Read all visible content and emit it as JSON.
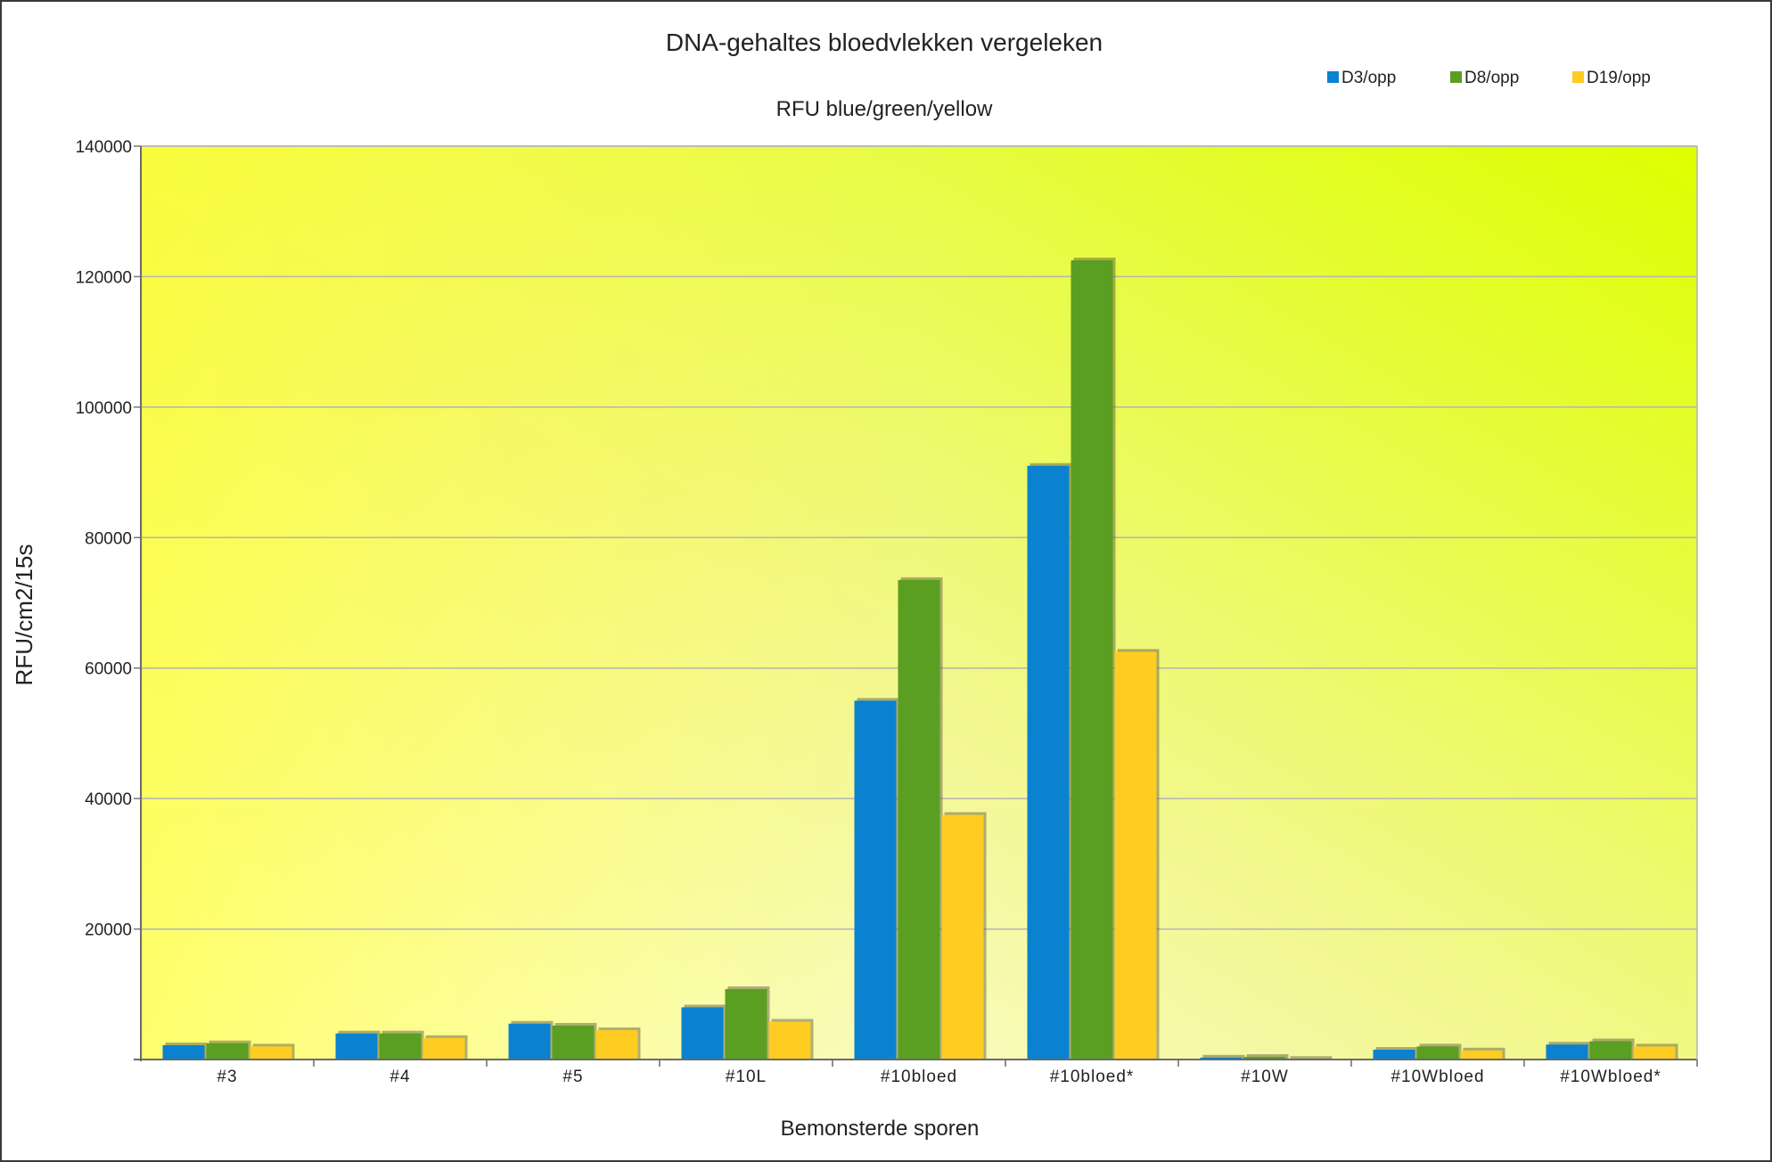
{
  "chart_data": {
    "type": "bar",
    "title": "DNA-gehaltes bloedvlekken vergeleken",
    "subtitle": "RFU blue/green/yellow",
    "xlabel": "Bemonsterde sporen",
    "ylabel": "RFU/cm2/15s",
    "ylim": [
      0,
      140000
    ],
    "yticks": [
      "20000",
      "40000",
      "60000",
      "80000",
      "100000",
      "120000",
      "140000"
    ],
    "ytick_values": [
      20000,
      40000,
      60000,
      80000,
      100000,
      120000,
      140000
    ],
    "grid": true,
    "legend_position": "top-right",
    "categories": [
      "#3",
      "#4",
      "#5",
      "#10L",
      "#10bloed",
      "#10bloed*",
      "#10W",
      "#10Wbloed",
      "#10Wbloed*"
    ],
    "series": [
      {
        "name": "D3/opp",
        "color": "#0a82d0",
        "values": [
          2200,
          4000,
          5500,
          8000,
          55000,
          91000,
          300,
          1500,
          2300
        ]
      },
      {
        "name": "D8/opp",
        "color": "#5a9e22",
        "values": [
          2500,
          4000,
          5200,
          10800,
          73500,
          122500,
          400,
          2000,
          2800
        ]
      },
      {
        "name": "D19/opp",
        "color": "#ffcc22",
        "values": [
          2000,
          3300,
          4500,
          5800,
          37500,
          62500,
          100,
          1400,
          2000
        ]
      }
    ]
  }
}
